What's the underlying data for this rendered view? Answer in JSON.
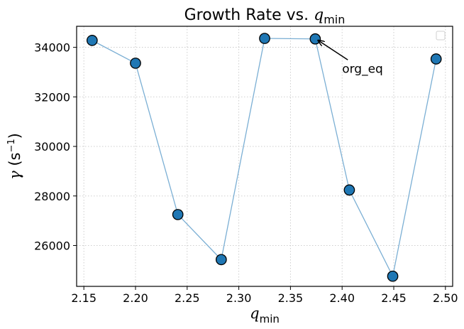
{
  "chart_data": {
    "type": "line",
    "title_prefix": "Growth Rate vs. ",
    "title_var": "q",
    "title_sub": "min",
    "xlabel_var": "q",
    "xlabel_sub": "min",
    "ylabel_var": "γ",
    "ylabel_unit": " (s",
    "ylabel_exp": "−1",
    "ylabel_close": ")",
    "x": [
      2.158,
      2.2,
      2.241,
      2.283,
      2.325,
      2.374,
      2.407,
      2.449,
      2.491
    ],
    "y": [
      34280,
      33360,
      27250,
      25430,
      34360,
      34340,
      28240,
      24760,
      33530
    ],
    "xlim": [
      2.143,
      2.507
    ],
    "ylim": [
      24350,
      34850
    ],
    "xticks": [
      2.15,
      2.2,
      2.25,
      2.3,
      2.35,
      2.4,
      2.45,
      2.5
    ],
    "xtick_labels": [
      "2.15",
      "2.20",
      "2.25",
      "2.30",
      "2.35",
      "2.40",
      "2.45",
      "2.50"
    ],
    "yticks": [
      26000,
      28000,
      30000,
      32000,
      34000
    ],
    "ytick_labels": [
      "26000",
      "28000",
      "30000",
      "32000",
      "34000"
    ],
    "grid": true,
    "annotation": {
      "text": "org_eq",
      "point_index": 5,
      "text_x": 2.4,
      "text_y": 33150
    },
    "colors": {
      "line": "#7bafd4",
      "marker": "#1f77b4",
      "edge": "#000000",
      "grid": "#c8c8c8"
    }
  }
}
